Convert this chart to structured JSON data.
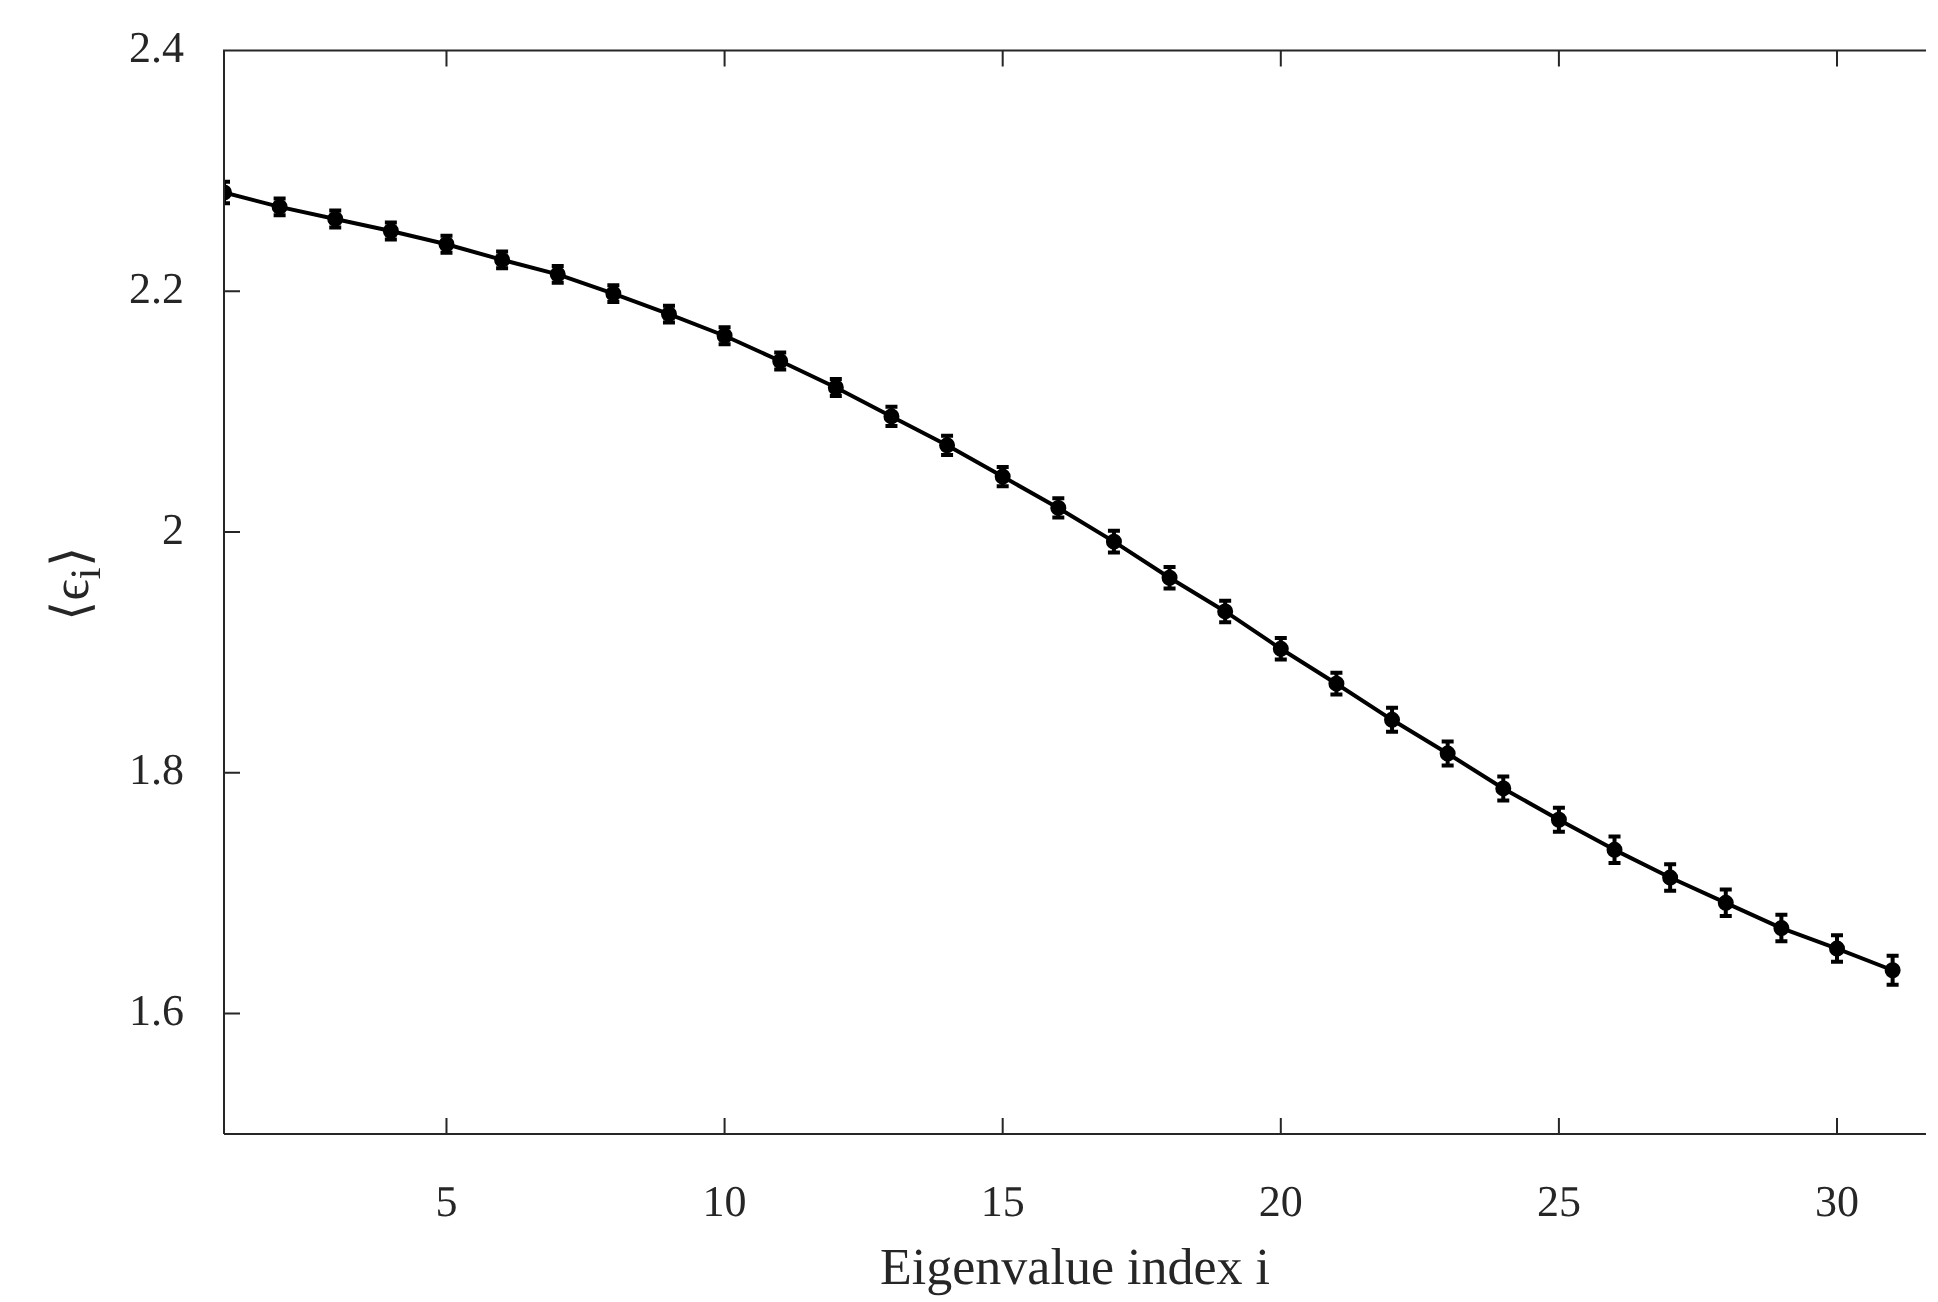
{
  "chart_data": {
    "type": "line",
    "xlabel": "Eigenvalue index i",
    "ylabel": "⟨ϵ$_{i}$⟩",
    "x": [
      1,
      2,
      3,
      4,
      5,
      6,
      7,
      8,
      9,
      10,
      11,
      12,
      13,
      14,
      15,
      16,
      17,
      18,
      19,
      20,
      21,
      22,
      23,
      24,
      25,
      26,
      27,
      28,
      29,
      30,
      31
    ],
    "series": [
      {
        "color": "#000000",
        "values": [
          2.282,
          2.27,
          2.26,
          2.25,
          2.239,
          2.226,
          2.214,
          2.198,
          2.181,
          2.163,
          2.142,
          2.12,
          2.096,
          2.072,
          2.046,
          2.02,
          1.992,
          1.962,
          1.934,
          1.903,
          1.874,
          1.844,
          1.816,
          1.787,
          1.761,
          1.736,
          1.713,
          1.692,
          1.671,
          1.654,
          1.636
        ],
        "errors": [
          0.009,
          0.007,
          0.007,
          0.007,
          0.007,
          0.007,
          0.007,
          0.007,
          0.007,
          0.007,
          0.007,
          0.007,
          0.008,
          0.008,
          0.008,
          0.008,
          0.009,
          0.009,
          0.009,
          0.009,
          0.009,
          0.01,
          0.01,
          0.01,
          0.01,
          0.011,
          0.011,
          0.011,
          0.011,
          0.011,
          0.012
        ]
      }
    ],
    "xlim": [
      1,
      31.6
    ],
    "xticks": [
      5,
      10,
      15,
      20,
      25,
      30
    ],
    "ylim": [
      1.5,
      2.4
    ],
    "yticks": [
      1.6,
      1.8,
      2,
      2.2,
      2.4
    ],
    "marker": "circle"
  }
}
